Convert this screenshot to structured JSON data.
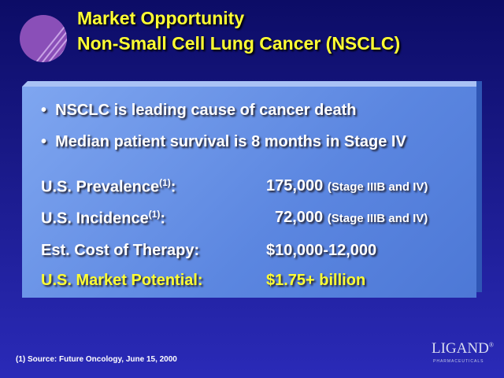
{
  "header": {
    "title_line1": "Market Opportunity",
    "title_line2": "Non-Small Cell Lung Cancer (NSCLC)"
  },
  "bullets": [
    "NSCLC is leading cause of cancer death",
    "Median patient survival is 8 months in Stage IV"
  ],
  "table": {
    "rows": [
      {
        "label": "U.S. Prevalence",
        "ref": "(1)",
        "colon": ":",
        "value": "175,000",
        "note": "(Stage IIIB and IV)"
      },
      {
        "label": "U.S. Incidence",
        "ref": "(1)",
        "colon": ":",
        "value": "72,000",
        "note": "(Stage IIIB and IV)"
      },
      {
        "label": "Est. Cost of Therapy:",
        "value": "$10,000-12,000"
      },
      {
        "label": "U.S. Market Potential:",
        "value": "$1.75+ billion"
      }
    ]
  },
  "footnote": "(1)  Source:  Future Oncology, June 15, 2000",
  "logo": {
    "name": "LIGAND",
    "mark": "®",
    "tagline": "PHARMACEUTICALS"
  }
}
